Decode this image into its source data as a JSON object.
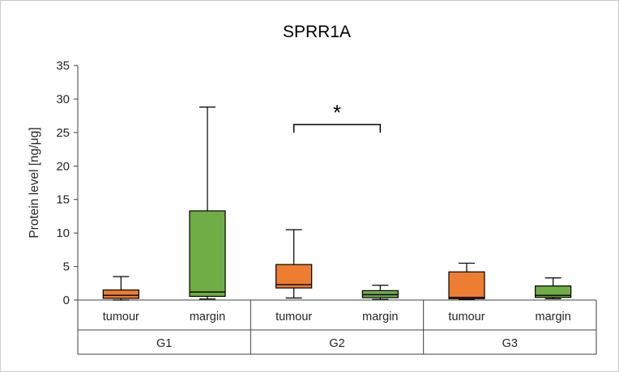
{
  "chart_data": {
    "type": "boxplot",
    "title": "SPRR1A",
    "ylabel": "Protein level [ng/μg]",
    "ylim": [
      0,
      35
    ],
    "yticks": [
      0,
      5,
      10,
      15,
      20,
      25,
      30,
      35
    ],
    "groups": [
      "G1",
      "G2",
      "G3"
    ],
    "subcategories": [
      "tumour",
      "margin"
    ],
    "series_colors": {
      "tumour": "#ED7D31",
      "margin": "#70AD47"
    },
    "boxes": [
      {
        "group": "G1",
        "category": "tumour",
        "min": 0.0,
        "q1": 0.25,
        "median": 0.7,
        "q3": 1.5,
        "max": 3.5
      },
      {
        "group": "G1",
        "category": "margin",
        "min": 0.15,
        "q1": 0.55,
        "median": 1.2,
        "q3": 13.3,
        "max": 28.8
      },
      {
        "group": "G2",
        "category": "tumour",
        "min": 0.3,
        "q1": 1.8,
        "median": 2.3,
        "q3": 5.3,
        "max": 10.5
      },
      {
        "group": "G2",
        "category": "margin",
        "min": 0.1,
        "q1": 0.35,
        "median": 0.8,
        "q3": 1.4,
        "max": 2.2
      },
      {
        "group": "G3",
        "category": "tumour",
        "min": 0.1,
        "q1": 0.2,
        "median": 0.4,
        "q3": 4.2,
        "max": 5.5
      },
      {
        "group": "G3",
        "category": "margin",
        "min": 0.2,
        "q1": 0.4,
        "median": 0.7,
        "q3": 2.1,
        "max": 3.3
      }
    ],
    "annotation": {
      "label": "*",
      "from": {
        "group": "G2",
        "category": "tumour"
      },
      "to": {
        "group": "G2",
        "category": "margin"
      }
    },
    "grid": "off",
    "legend": "none"
  },
  "colors": {
    "axis_line": "#404040",
    "box_stroke": "#000000",
    "frame_border": "#c9c9c9",
    "text": "#262626"
  }
}
